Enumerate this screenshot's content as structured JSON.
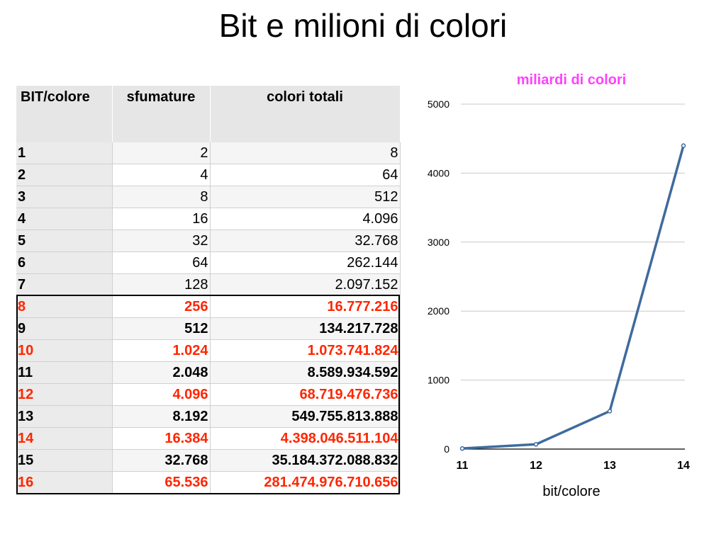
{
  "title": "Bit e milioni di colori",
  "table": {
    "headers": [
      "BIT/colore",
      "sfumature",
      "colori totali"
    ],
    "rows": [
      {
        "bit": "1",
        "sfumature": "2",
        "colori": "8"
      },
      {
        "bit": "2",
        "sfumature": "4",
        "colori": "64"
      },
      {
        "bit": "3",
        "sfumature": "8",
        "colori": "512"
      },
      {
        "bit": "4",
        "sfumature": "16",
        "colori": "4.096"
      },
      {
        "bit": "5",
        "sfumature": "32",
        "colori": "32.768"
      },
      {
        "bit": "6",
        "sfumature": "64",
        "colori": "262.144"
      },
      {
        "bit": "7",
        "sfumature": "128",
        "colori": "2.097.152"
      },
      {
        "bit": "8",
        "sfumature": "256",
        "colori": "16.777.216"
      },
      {
        "bit": "9",
        "sfumature": "512",
        "colori": "134.217.728"
      },
      {
        "bit": "10",
        "sfumature": "1.024",
        "colori": "1.073.741.824"
      },
      {
        "bit": "11",
        "sfumature": "2.048",
        "colori": "8.589.934.592"
      },
      {
        "bit": "12",
        "sfumature": "4.096",
        "colori": "68.719.476.736"
      },
      {
        "bit": "13",
        "sfumature": "8.192",
        "colori": "549.755.813.888"
      },
      {
        "bit": "14",
        "sfumature": "16.384",
        "colori": "4.398.046.511.104"
      },
      {
        "bit": "15",
        "sfumature": "32.768",
        "colori": "35.184.372.088.832"
      },
      {
        "bit": "16",
        "sfumature": "65.536",
        "colori": "281.474.976.710.656"
      }
    ],
    "highlight_color": "#ff2600"
  },
  "chart_data": {
    "type": "line",
    "title": "miliardi di colori",
    "title_color": "#ff40ff",
    "xlabel": "bit/colore",
    "ylabel": "",
    "x": [
      11,
      12,
      13,
      14
    ],
    "categories": [
      "11",
      "12",
      "13",
      "14"
    ],
    "series": [
      {
        "values": [
          8.59,
          68.72,
          549.76,
          4398.05
        ],
        "color": "#3f6a9e"
      }
    ],
    "ylim": [
      0,
      5000
    ],
    "yticks": [
      "0",
      "1000",
      "2000",
      "3000",
      "4000",
      "5000"
    ],
    "grid": true,
    "legend": "none"
  }
}
